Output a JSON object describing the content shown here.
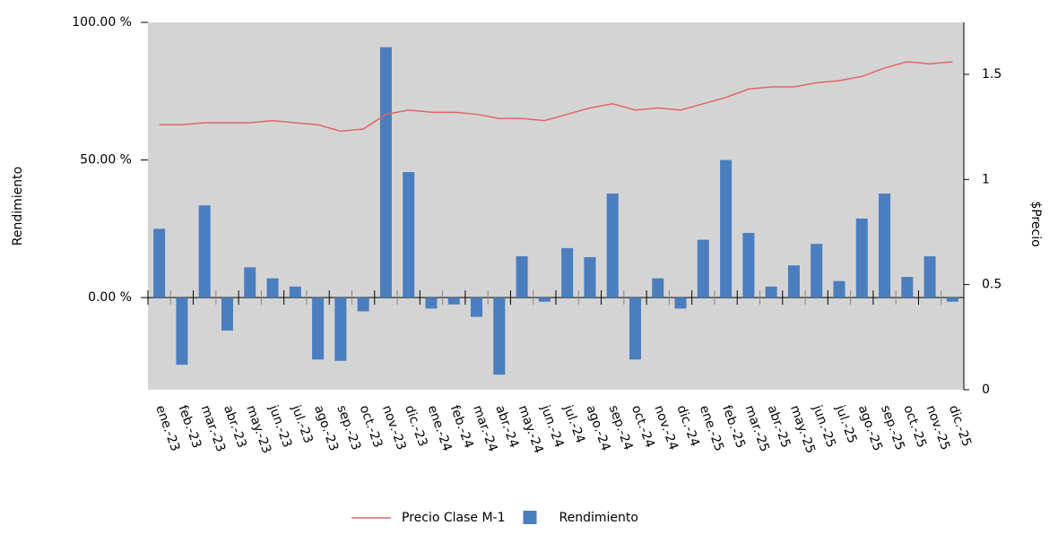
{
  "chart_data": {
    "type": "bar",
    "categories": [
      "ene.-23",
      "feb.-23",
      "mar.-23",
      "abr.-23",
      "may.-23",
      "jun.-23",
      "jul.-23",
      "ago.-23",
      "sep.-23",
      "oct.-23",
      "nov.-23",
      "dic.-23",
      "ene.-24",
      "feb.-24",
      "mar.-24",
      "abr.-24",
      "may.-24",
      "jun.-24",
      "jul.-24",
      "ago.-24",
      "sep.-24",
      "oct.-24",
      "nov.-24",
      "dic.-24",
      "ene.-25",
      "feb.-25",
      "mar.-25",
      "abr.-25",
      "may.-25",
      "jun.-25",
      "jul.-25",
      "ago.-25",
      "sep.-25",
      "oct.-25",
      "nov.-25",
      "dic.-25"
    ],
    "series": [
      {
        "name": "Precio Clase M-1",
        "type": "line",
        "axis": "y2",
        "color": "#e06666",
        "values": [
          1.26,
          1.26,
          1.27,
          1.27,
          1.27,
          1.28,
          1.27,
          1.26,
          1.23,
          1.24,
          1.31,
          1.33,
          1.32,
          1.32,
          1.31,
          1.29,
          1.29,
          1.28,
          1.31,
          1.34,
          1.36,
          1.33,
          1.34,
          1.33,
          1.36,
          1.39,
          1.43,
          1.44,
          1.44,
          1.46,
          1.47,
          1.49,
          1.53,
          1.56,
          1.55,
          1.56
        ]
      },
      {
        "name": "Rendimiento",
        "type": "bar",
        "color": "#4a7ebf",
        "values": [
          25,
          -24.4,
          33.5,
          -12,
          11,
          7,
          4,
          -22.5,
          -23,
          -5,
          91,
          45.6,
          -4,
          -2.5,
          -7,
          -28,
          15,
          -1.5,
          18,
          14.7,
          37.8,
          -22.5,
          7,
          -4,
          21,
          50,
          23.5,
          4,
          11.7,
          19.5,
          6,
          28.7,
          37.8,
          7.5,
          15,
          -1.5
        ]
      }
    ],
    "y_label": "Rendimiento",
    "y2_label": "$Precio",
    "ylim": [
      -33.5,
      100
    ],
    "yticks": [
      {
        "value": 0,
        "label": "0.00 %"
      },
      {
        "value": 50,
        "label": "50.00 %"
      },
      {
        "value": 100,
        "label": "100.00 %"
      }
    ],
    "y2lim": [
      0,
      1.747
    ],
    "y2ticks": [
      0,
      0.5,
      1,
      1.5
    ]
  }
}
